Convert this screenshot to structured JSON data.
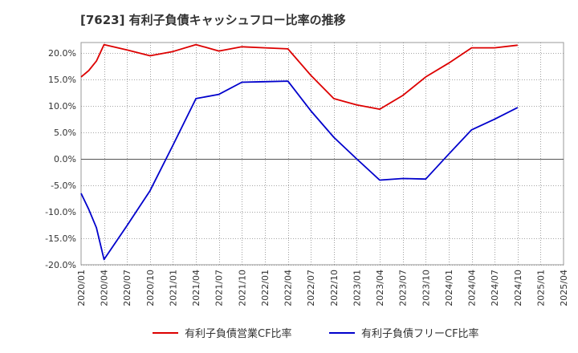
{
  "chart_data": {
    "type": "line",
    "title": "[7623]  有利子負債キャッシュフロー比率の推移",
    "xlabel": "",
    "ylabel": "",
    "ylim": [
      -20,
      22
    ],
    "yticks": [
      -20,
      -15,
      -10,
      -5,
      0,
      5,
      10,
      15,
      20
    ],
    "ytick_labels": [
      "-20.0%",
      "-15.0%",
      "-10.0%",
      "-5.0%",
      "0.0%",
      "5.0%",
      "10.0%",
      "15.0%",
      "20.0%"
    ],
    "xlim": [
      "2020/01",
      "2025/04"
    ],
    "xtick_labels": [
      "2020/01",
      "2020/04",
      "2020/07",
      "2020/10",
      "2021/01",
      "2021/04",
      "2021/07",
      "2021/10",
      "2022/01",
      "2022/04",
      "2022/07",
      "2022/10",
      "2023/01",
      "2023/04",
      "2023/07",
      "2023/10",
      "2024/01",
      "2024/04",
      "2024/07",
      "2024/10",
      "2025/01",
      "2025/04"
    ],
    "grid": true,
    "legend_position": "bottom",
    "series": [
      {
        "name": "有利子負債営業CF比率",
        "color": "#dd0000",
        "points": [
          [
            "2020/01",
            15.5
          ],
          [
            "2020/02",
            16.7
          ],
          [
            "2020/03",
            18.5
          ],
          [
            "2020/04",
            21.6
          ],
          [
            "2020/07",
            20.6
          ],
          [
            "2020/10",
            19.5
          ],
          [
            "2021/01",
            20.3
          ],
          [
            "2021/04",
            21.6
          ],
          [
            "2021/07",
            20.4
          ],
          [
            "2021/10",
            21.2
          ],
          [
            "2022/01",
            21.0
          ],
          [
            "2022/04",
            20.8
          ],
          [
            "2022/07",
            15.8
          ],
          [
            "2022/10",
            11.4
          ],
          [
            "2023/01",
            10.2
          ],
          [
            "2023/04",
            9.4
          ],
          [
            "2023/07",
            12.0
          ],
          [
            "2023/10",
            15.5
          ],
          [
            "2024/01",
            18.1
          ],
          [
            "2024/04",
            21.0
          ],
          [
            "2024/07",
            21.0
          ],
          [
            "2024/10",
            21.5
          ]
        ]
      },
      {
        "name": "有利子負債フリーCF比率",
        "color": "#0000cc",
        "points": [
          [
            "2020/01",
            -6.5
          ],
          [
            "2020/02",
            -9.5
          ],
          [
            "2020/03",
            -13.0
          ],
          [
            "2020/04",
            -19.0
          ],
          [
            "2020/07",
            -12.6
          ],
          [
            "2020/10",
            -6.0
          ],
          [
            "2021/01",
            2.6
          ],
          [
            "2021/04",
            11.4
          ],
          [
            "2021/07",
            12.2
          ],
          [
            "2021/10",
            14.5
          ],
          [
            "2022/01",
            14.6
          ],
          [
            "2022/04",
            14.7
          ],
          [
            "2022/07",
            9.1
          ],
          [
            "2022/10",
            4.1
          ],
          [
            "2023/01",
            0.0
          ],
          [
            "2023/04",
            -4.0
          ],
          [
            "2023/07",
            -3.7
          ],
          [
            "2023/10",
            -3.8
          ],
          [
            "2024/01",
            0.9
          ],
          [
            "2024/04",
            5.5
          ],
          [
            "2024/07",
            7.5
          ],
          [
            "2024/10",
            9.7
          ]
        ]
      }
    ]
  }
}
